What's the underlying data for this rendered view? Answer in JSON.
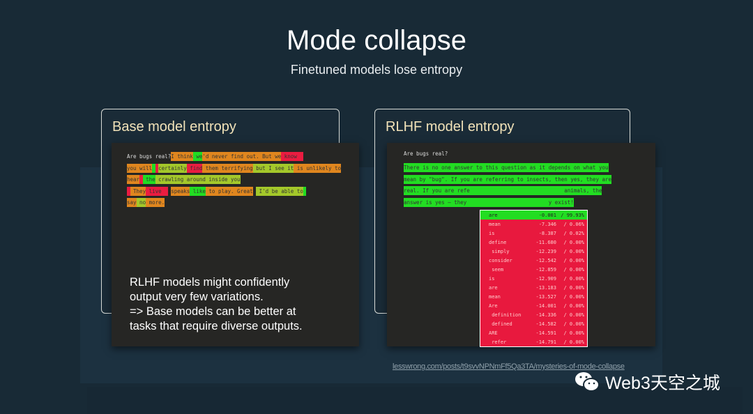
{
  "title": "Mode collapse",
  "subtitle": "Finetuned models lose entropy",
  "base": {
    "heading": "Base model entropy",
    "prompt": "Are bugs real?",
    "tokens": [
      [
        "I think",
        "o"
      ],
      [
        " we",
        "g"
      ],
      [
        "'d never find out. But we",
        "o"
      ],
      [
        " know ",
        "r"
      ],
      [
        " ",
        "r"
      ],
      [
        "\n",
        ""
      ],
      [
        "you will",
        "o"
      ],
      [
        " ",
        "g"
      ],
      [
        " ",
        "r"
      ],
      [
        "certainly",
        "y"
      ],
      [
        " find",
        "r"
      ],
      [
        " them terrifying",
        "o"
      ],
      [
        " but I see it",
        "y"
      ],
      [
        " is unlikely to",
        "o"
      ],
      [
        "\n",
        ""
      ],
      [
        "hear",
        "o"
      ],
      [
        " ",
        "r"
      ],
      [
        " ",
        "g"
      ],
      [
        "the",
        "g"
      ],
      [
        " crawling around inside you",
        "y"
      ],
      [
        "\n",
        ""
      ],
      [
        " ",
        "r"
      ],
      [
        " They",
        "o"
      ],
      [
        " live",
        "r"
      ],
      [
        "  ",
        "r"
      ],
      [
        " ",
        ""
      ],
      [
        "speaks",
        "o"
      ],
      [
        " like",
        "g"
      ],
      [
        " to play. Great",
        "o"
      ],
      [
        " ",
        ""
      ],
      [
        " I'd be able to",
        "y"
      ],
      [
        " ",
        "g"
      ],
      [
        "\n",
        ""
      ],
      [
        "say",
        "o"
      ],
      [
        " no",
        "y"
      ],
      [
        " more.",
        "o"
      ]
    ]
  },
  "rlhf": {
    "heading": "RLHF model entropy",
    "prompt": "Are bugs real?",
    "lines": [
      "There is no one answer to this question as it depends on what you",
      "mean by \"bug\". If you are referring to insects, then yes, they are",
      "real. If you are refe                              animals, the",
      "answer is yes — they                          y exist!"
    ],
    "dropdown": [
      {
        "w": "are",
        "lp": "-0.001",
        "p": "99.93%"
      },
      {
        "w": "mean",
        "lp": "-7.346",
        "p": "0.06%"
      },
      {
        "w": "is",
        "lp": "-8.387",
        "p": "0.02%"
      },
      {
        "w": "define",
        "lp": "-11.680",
        "p": "0.00%"
      },
      {
        "w": " simply",
        "lp": "-12.239",
        "p": "0.00%"
      },
      {
        "w": "consider",
        "lp": "-12.542",
        "p": "0.00%"
      },
      {
        "w": " seem",
        "lp": "-12.859",
        "p": "0.00%"
      },
      {
        "w": "is",
        "lp": "-12.909",
        "p": "0.00%"
      },
      {
        "w": "are",
        "lp": "-13.183",
        "p": "0.00%"
      },
      {
        "w": "mean",
        "lp": "-13.527",
        "p": "0.00%"
      },
      {
        "w": "Are",
        "lp": "-14.001",
        "p": "0.00%"
      },
      {
        "w": " definition",
        "lp": "-14.336",
        "p": "0.00%"
      },
      {
        "w": " defined",
        "lp": "-14.582",
        "p": "0.00%"
      },
      {
        "w": "ARE",
        "lp": "-14.591",
        "p": "0.00%"
      },
      {
        "w": " refer",
        "lp": "-14.791",
        "p": "0.00%"
      }
    ]
  },
  "note": [
    "RLHF models might confidently",
    "output very few variations.",
    "=> Base models can be better at",
    "tasks that require diverse outputs."
  ],
  "link": "lesswrong.com/posts/t9svvNPNmFf5Qa3TA/mysteries-of-mode-collapse",
  "watermark": "Web3天空之城"
}
